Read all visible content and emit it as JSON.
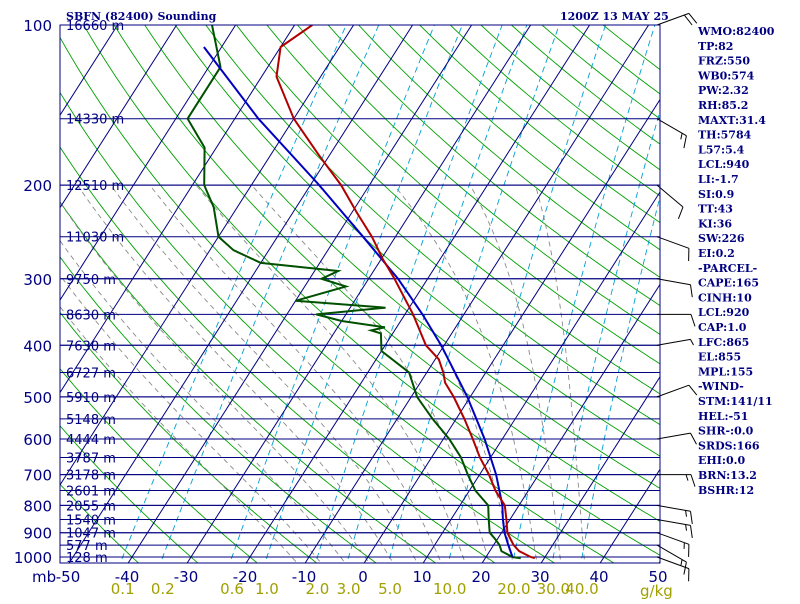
{
  "header": {
    "station_title": "SBFN (82400) Sounding",
    "time": "1200Z 13 MAY 25"
  },
  "indices": [
    "WMO:82400",
    "TP:82",
    "FRZ:550",
    "WB0:574",
    "PW:2.32",
    "RH:85.2",
    "MAXT:31.4",
    "TH:5784",
    "L57:5.4",
    "LCL:940",
    "LI:-1.7",
    "SI:0.9",
    "TT:43",
    "KI:36",
    "SW:226",
    "EI:0.2",
    "-PARCEL-",
    "CAPE:165",
    "CINH:10",
    "LCL:920",
    "CAP:1.0",
    "LFC:865",
    "EL:855",
    "MPL:155",
    "-WIND-",
    "STM:141/11",
    "HEL:-51",
    "SHR-:0.0",
    "SRDS:166",
    "EHI:0.0",
    "BRN:13.2",
    "BSHR:12"
  ],
  "colors": {
    "frame": "#000080",
    "isobar": "#000080",
    "isotherm": "#000080",
    "dry_adiabat": "#00a000",
    "moist_adiabat": "#8a8a8a",
    "mixing_ratio": "#00a0d0",
    "temperature": "#b00000",
    "dewpoint": "#005000",
    "parcel": "#0000c0",
    "wind_barb": "#000000"
  },
  "chart_data": {
    "type": "skew-t",
    "x_axis_unit_label": "mb",
    "pressure_levels_mb": [
      100,
      200,
      300,
      400,
      500,
      600,
      700,
      800,
      900,
      1000
    ],
    "pressure_tick_labels": [
      "100",
      "200",
      "300",
      "400",
      "500",
      "600",
      "700",
      "800",
      "900",
      "1000"
    ],
    "height_labels": [
      {
        "p": 100,
        "label": "16660 m"
      },
      {
        "p": 150,
        "label": "14330 m"
      },
      {
        "p": 200,
        "label": "12510 m"
      },
      {
        "p": 250,
        "label": "11030 m"
      },
      {
        "p": 300,
        "label": "9750 m"
      },
      {
        "p": 350,
        "label": "8630 m"
      },
      {
        "p": 400,
        "label": "7630 m"
      },
      {
        "p": 450,
        "label": "6727 m"
      },
      {
        "p": 500,
        "label": "5910 m"
      },
      {
        "p": 550,
        "label": "5148 m"
      },
      {
        "p": 600,
        "label": "4444 m"
      },
      {
        "p": 650,
        "label": "3787 m"
      },
      {
        "p": 700,
        "label": "3178 m"
      },
      {
        "p": 750,
        "label": "2601 m"
      },
      {
        "p": 800,
        "label": "2055 m"
      },
      {
        "p": 850,
        "label": "1540 m"
      },
      {
        "p": 900,
        "label": "1047 m"
      },
      {
        "p": 950,
        "label": "577 m"
      },
      {
        "p": 1000,
        "label": "128 m"
      }
    ],
    "temperature_ticks_c": [
      -50,
      -40,
      -30,
      -20,
      -10,
      0,
      10,
      20,
      30,
      40,
      50
    ],
    "temperature_tick_labels": [
      "-50",
      "-40",
      "-30",
      "-20",
      "-10",
      "0",
      "10",
      "20",
      "30",
      "40",
      "50"
    ],
    "mixing_ratio_ticks_gkg": [
      0.1,
      0.2,
      0.6,
      1.0,
      2.0,
      3.0,
      5.0,
      10.0,
      20.0,
      30.0,
      40.0
    ],
    "mixing_ratio_tick_labels": [
      "0.1",
      "0.2",
      "0.6",
      "1.0",
      "2.0",
      "3.0",
      "5.0",
      "10.0",
      "20.0",
      "30.0",
      "40.0"
    ],
    "mixing_ratio_unit": "g/kg",
    "temperature_profile": [
      [
        1005,
        28.4
      ],
      [
        1000,
        27.6
      ],
      [
        975,
        25.0
      ],
      [
        950,
        23.4
      ],
      [
        925,
        22.2
      ],
      [
        900,
        21.0
      ],
      [
        850,
        19.4
      ],
      [
        800,
        17.6
      ],
      [
        750,
        14.4
      ],
      [
        700,
        11.6
      ],
      [
        650,
        8.2
      ],
      [
        600,
        5.0
      ],
      [
        550,
        1.4
      ],
      [
        500,
        -2.8
      ],
      [
        470,
        -5.8
      ],
      [
        450,
        -7.2
      ],
      [
        425,
        -9.4
      ],
      [
        400,
        -13.1
      ],
      [
        350,
        -18.6
      ],
      [
        300,
        -25.6
      ],
      [
        275,
        -29.8
      ],
      [
        250,
        -34.0
      ],
      [
        225,
        -39.2
      ],
      [
        200,
        -44.8
      ],
      [
        175,
        -52.0
      ],
      [
        150,
        -60.0
      ],
      [
        125,
        -67.5
      ],
      [
        110,
        -70.0
      ],
      [
        100,
        -67.0
      ]
    ],
    "dewpoint_profile": [
      [
        1005,
        26.0
      ],
      [
        1000,
        24.5
      ],
      [
        975,
        22.0
      ],
      [
        950,
        21.0
      ],
      [
        925,
        19.6
      ],
      [
        900,
        18.0
      ],
      [
        850,
        16.4
      ],
      [
        800,
        14.8
      ],
      [
        750,
        11.0
      ],
      [
        700,
        8.0
      ],
      [
        650,
        5.0
      ],
      [
        600,
        1.0
      ],
      [
        550,
        -4.0
      ],
      [
        500,
        -9.0
      ],
      [
        450,
        -13.0
      ],
      [
        410,
        -20.0
      ],
      [
        380,
        -22.0
      ],
      [
        375,
        -24.0
      ],
      [
        370,
        -22.0
      ],
      [
        360,
        -30.0
      ],
      [
        350,
        -35.0
      ],
      [
        340,
        -24.0
      ],
      [
        330,
        -40.0
      ],
      [
        310,
        -33.0
      ],
      [
        300,
        -38.0
      ],
      [
        290,
        -36.0
      ],
      [
        280,
        -50.0
      ],
      [
        265,
        -56.0
      ],
      [
        250,
        -60.0
      ],
      [
        220,
        -64.0
      ],
      [
        200,
        -68.0
      ],
      [
        170,
        -72.0
      ],
      [
        150,
        -78.0
      ],
      [
        120,
        -78.0
      ],
      [
        100,
        -84.0
      ]
    ],
    "parcel_profile": [
      [
        1000,
        24.5
      ],
      [
        950,
        22.5
      ],
      [
        900,
        20.5
      ],
      [
        850,
        18.8
      ],
      [
        800,
        17.2
      ],
      [
        700,
        12.8
      ],
      [
        600,
        7.0
      ],
      [
        500,
        -0.5
      ],
      [
        400,
        -10.5
      ],
      [
        350,
        -17.0
      ],
      [
        300,
        -25.0
      ],
      [
        250,
        -35.5
      ],
      [
        200,
        -48.5
      ],
      [
        150,
        -66.0
      ],
      [
        110,
        -83.0
      ]
    ],
    "wind_barbs": [
      {
        "p": 1000,
        "dir": 110,
        "kt": 10
      },
      {
        "p": 950,
        "dir": 120,
        "kt": 15
      },
      {
        "p": 900,
        "dir": 110,
        "kt": 15
      },
      {
        "p": 850,
        "dir": 100,
        "kt": 15
      },
      {
        "p": 800,
        "dir": 100,
        "kt": 15
      },
      {
        "p": 700,
        "dir": 90,
        "kt": 15
      },
      {
        "p": 600,
        "dir": 80,
        "kt": 10
      },
      {
        "p": 500,
        "dir": 70,
        "kt": 10
      },
      {
        "p": 400,
        "dir": 80,
        "kt": 5
      },
      {
        "p": 350,
        "dir": 90,
        "kt": 10
      },
      {
        "p": 300,
        "dir": 100,
        "kt": 10
      },
      {
        "p": 250,
        "dir": 110,
        "kt": 10
      },
      {
        "p": 200,
        "dir": 130,
        "kt": 10
      },
      {
        "p": 150,
        "dir": 120,
        "kt": 15
      },
      {
        "p": 100,
        "dir": 70,
        "kt": 20
      }
    ],
    "grid": true
  }
}
